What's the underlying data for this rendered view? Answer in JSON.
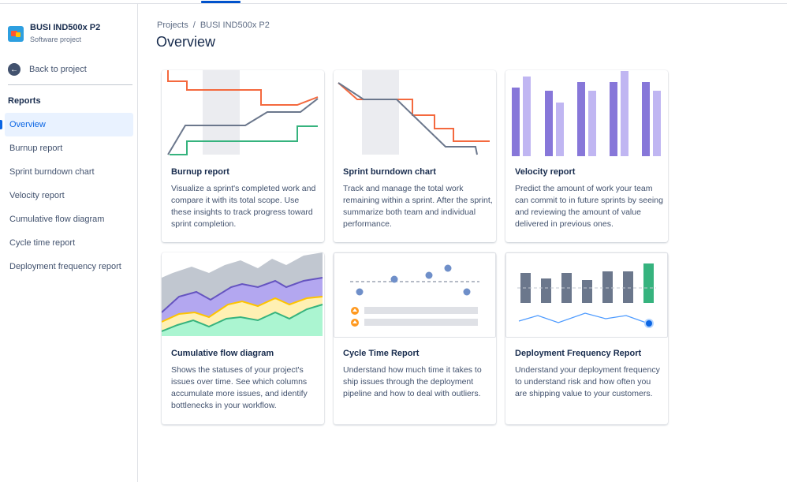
{
  "project": {
    "name": "BUSI IND500x P2",
    "type": "Software project"
  },
  "sidebar": {
    "back_label": "Back to project",
    "section_title": "Reports",
    "items": [
      {
        "label": "Overview",
        "active": true
      },
      {
        "label": "Burnup report"
      },
      {
        "label": "Sprint burndown chart"
      },
      {
        "label": "Velocity report"
      },
      {
        "label": "Cumulative flow diagram"
      },
      {
        "label": "Cycle time report"
      },
      {
        "label": "Deployment frequency report"
      }
    ]
  },
  "breadcrumb": {
    "root": "Projects",
    "separator": "/",
    "current": "BUSI IND500x P2"
  },
  "page": {
    "title": "Overview"
  },
  "cards": [
    {
      "title": "Burnup report",
      "description": "Visualize a sprint's completed work and compare it with its total scope. Use these insights to track progress toward sprint completion."
    },
    {
      "title": "Sprint burndown chart",
      "description": "Track and manage the total work remaining within a sprint. After the sprint, summarize both team and individual performance."
    },
    {
      "title": "Velocity report",
      "description": "Predict the amount of work your team can commit to in future sprints by seeing and reviewing the amount of value delivered in previous ones."
    },
    {
      "title": "Cumulative flow diagram",
      "description": "Shows the statuses of your project's issues over time. See which columns accumulate more issues, and identify bottlenecks in your workflow."
    },
    {
      "title": "Cycle Time Report",
      "description": "Understand how much time it takes to ship issues through the deployment pipeline and how to deal with outliers."
    },
    {
      "title": "Deployment Frequency Report",
      "description": "Understand your deployment frequency to understand risk and how often you are shipping value to your customers."
    }
  ],
  "colors": {
    "accent": "#0c66e4",
    "orange": "#f4693e",
    "gray_line": "#6b778c",
    "green": "#36b37e",
    "purple_dark": "#8777d9",
    "purple_light": "#c0b6f2",
    "highlight_band": "#ebecf0"
  }
}
